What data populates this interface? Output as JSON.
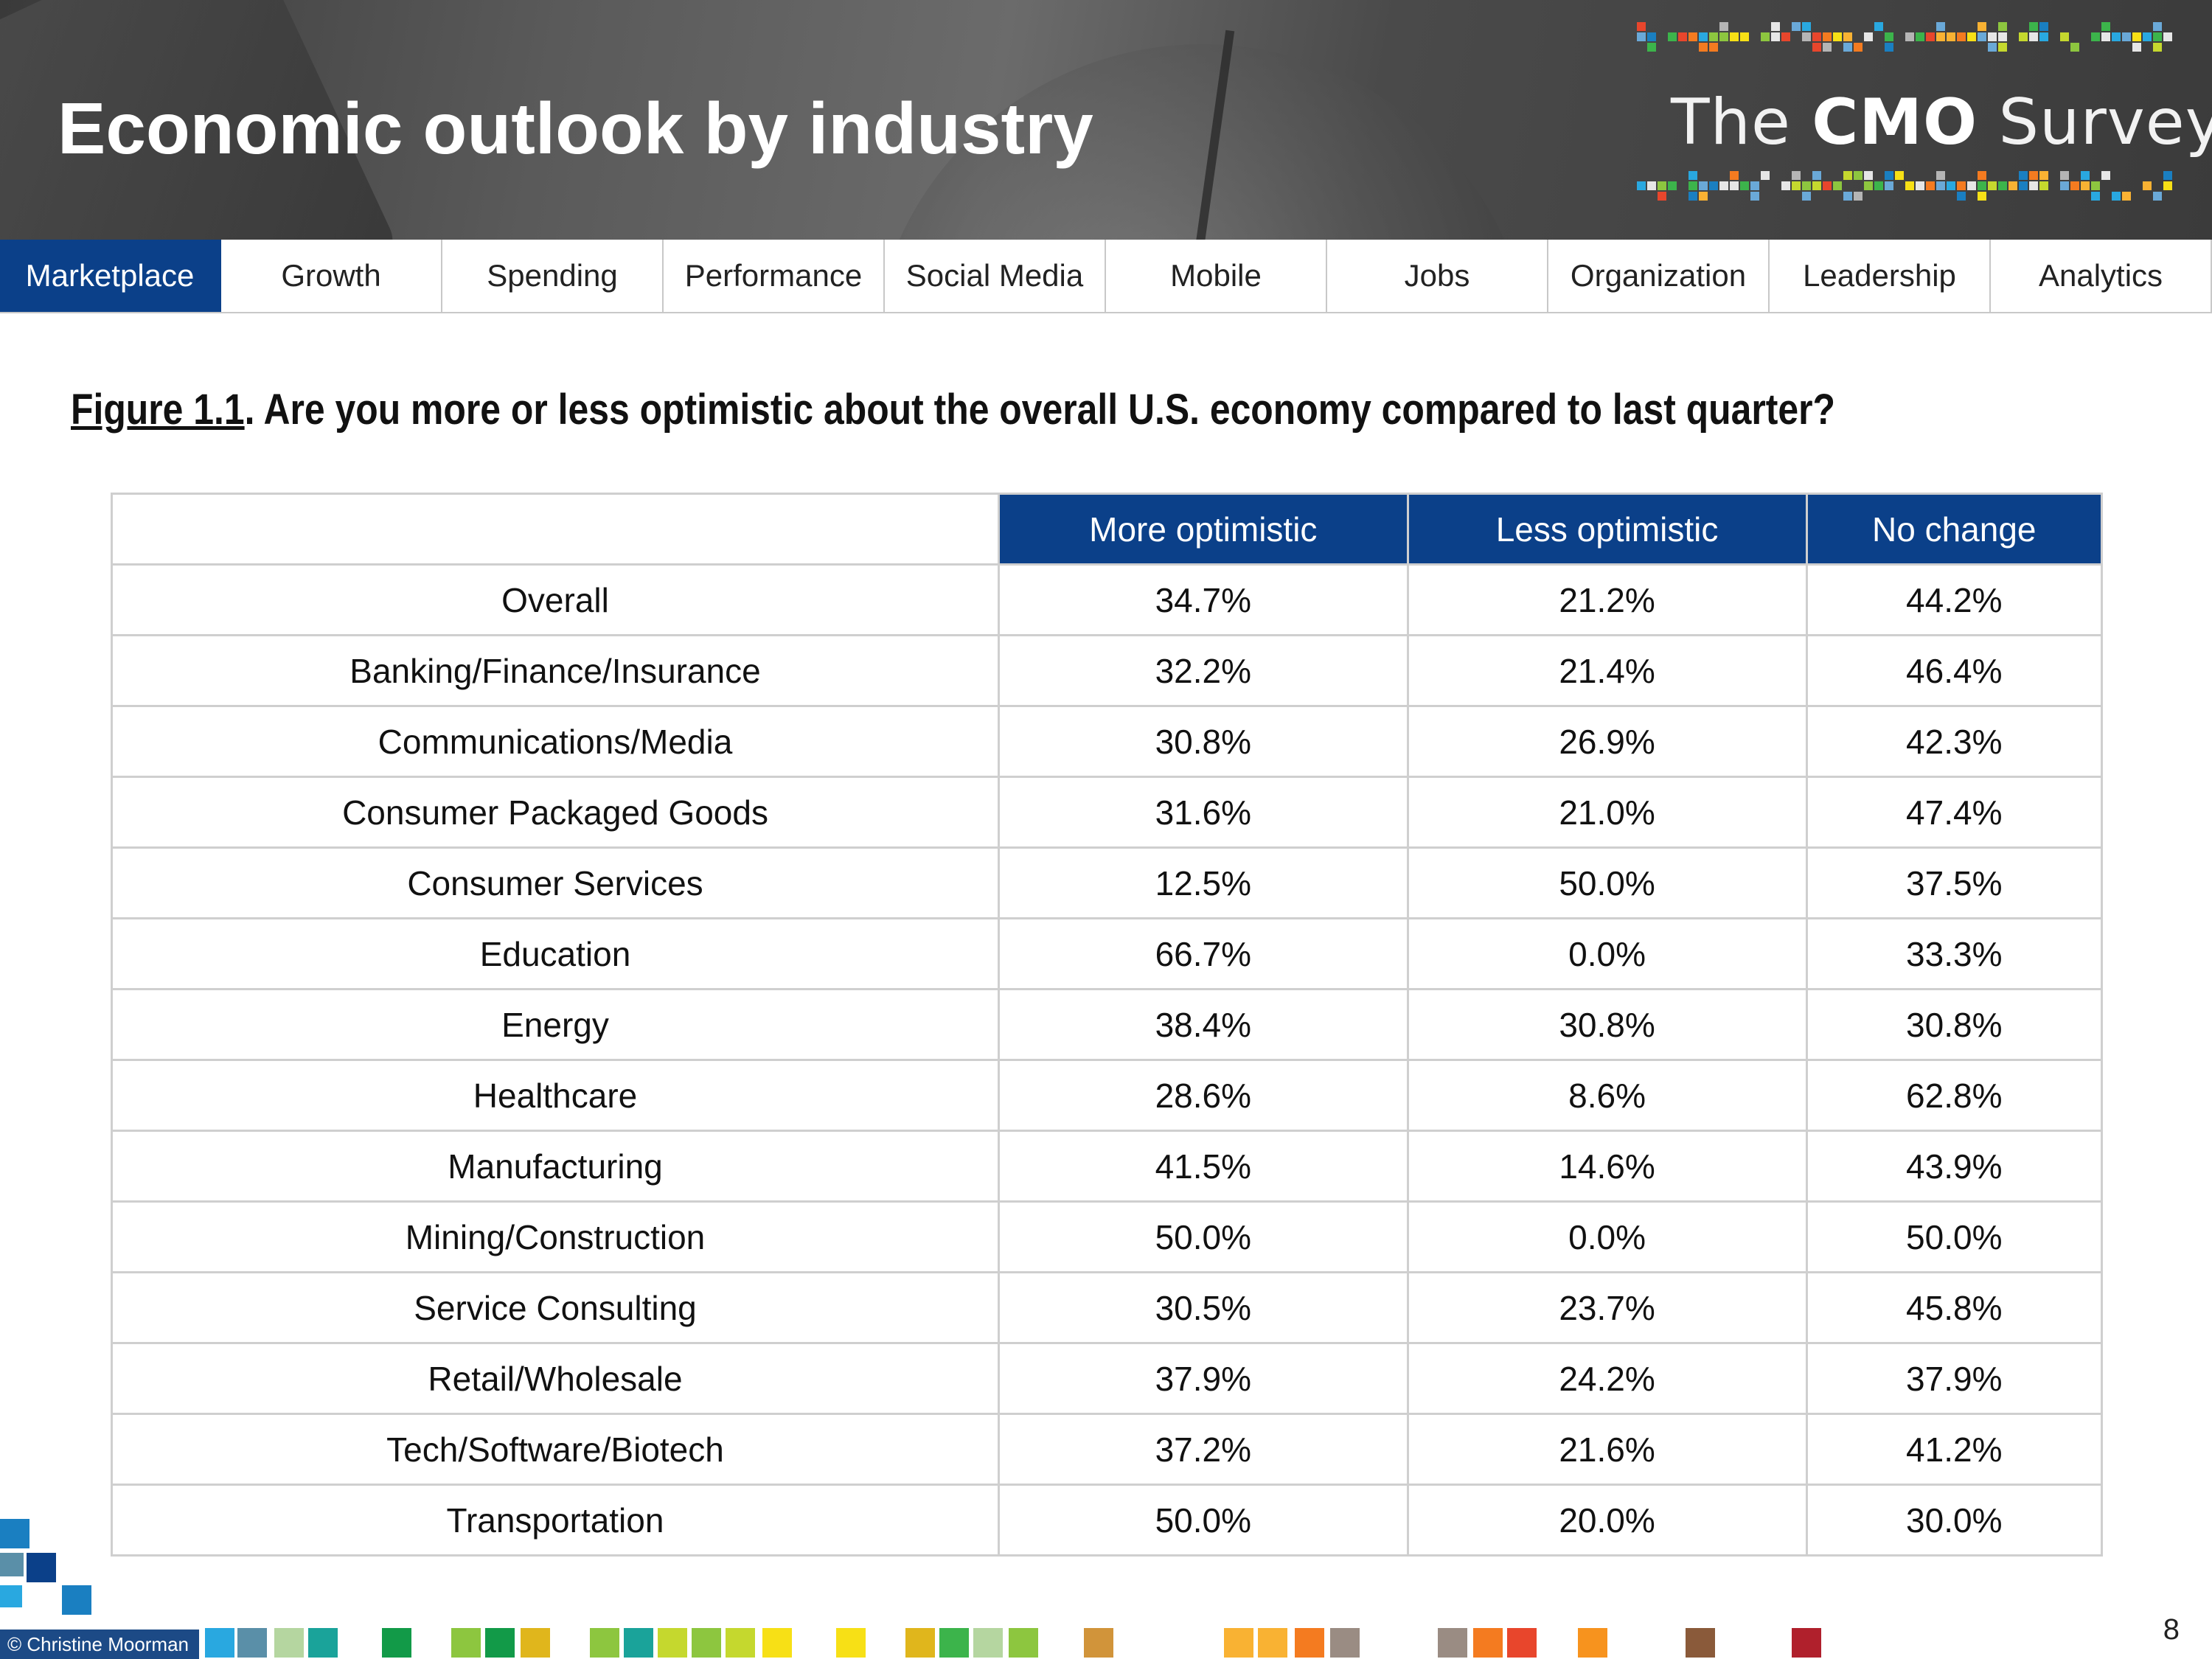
{
  "header": {
    "title": "Economic outlook by industry",
    "logo_prefix": "The ",
    "logo_bold": "CMO",
    "logo_suffix": " Survey"
  },
  "nav": {
    "active": "Marketplace",
    "tabs": [
      "Marketplace",
      "Growth",
      "Spending",
      "Performance",
      "Social Media",
      "Mobile",
      "Jobs",
      "Organization",
      "Leadership",
      "Analytics"
    ]
  },
  "figure": {
    "label": "Figure 1.1",
    "question": ".  Are you more or less optimistic about the overall U.S. economy compared to last quarter?"
  },
  "table": {
    "columns": [
      "More optimistic",
      "Less optimistic",
      "No change"
    ],
    "rows": [
      {
        "label": "Overall",
        "values": [
          "34.7%",
          "21.2%",
          "44.2%"
        ]
      },
      {
        "label": "Banking/Finance/Insurance",
        "values": [
          "32.2%",
          "21.4%",
          "46.4%"
        ]
      },
      {
        "label": "Communications/Media",
        "values": [
          "30.8%",
          "26.9%",
          "42.3%"
        ]
      },
      {
        "label": "Consumer Packaged Goods",
        "values": [
          "31.6%",
          "21.0%",
          "47.4%"
        ]
      },
      {
        "label": "Consumer Services",
        "values": [
          "12.5%",
          "50.0%",
          "37.5%"
        ]
      },
      {
        "label": "Education",
        "values": [
          "66.7%",
          "0.0%",
          "33.3%"
        ]
      },
      {
        "label": "Energy",
        "values": [
          "38.4%",
          "30.8%",
          "30.8%"
        ]
      },
      {
        "label": "Healthcare",
        "values": [
          "28.6%",
          "8.6%",
          "62.8%"
        ]
      },
      {
        "label": "Manufacturing",
        "values": [
          "41.5%",
          "14.6%",
          "43.9%"
        ]
      },
      {
        "label": "Mining/Construction",
        "values": [
          "50.0%",
          "0.0%",
          "50.0%"
        ]
      },
      {
        "label": "Service Consulting",
        "values": [
          "30.5%",
          "23.7%",
          "45.8%"
        ]
      },
      {
        "label": "Retail/Wholesale",
        "values": [
          "37.9%",
          "24.2%",
          "37.9%"
        ]
      },
      {
        "label": "Tech/Software/Biotech",
        "values": [
          "37.2%",
          "21.6%",
          "41.2%"
        ]
      },
      {
        "label": "Transportation",
        "values": [
          "50.0%",
          "20.0%",
          "30.0%"
        ]
      }
    ]
  },
  "footer": {
    "copyright": "© Christine Moorman",
    "page_number": "8"
  },
  "colors": {
    "brand_blue": "#0b4089",
    "border_gray": "#cfcfcf"
  }
}
